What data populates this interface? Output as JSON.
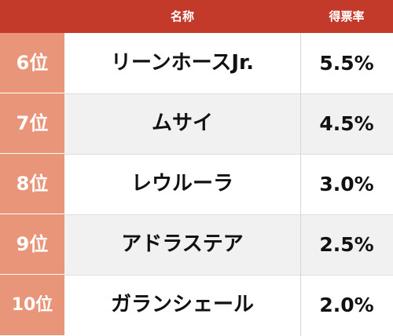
{
  "table": {
    "headers": {
      "name": "名称",
      "rate": "得票率"
    },
    "rows": [
      {
        "rank": "6位",
        "name": "リーンホースJr.",
        "rate": "5.5%"
      },
      {
        "rank": "7位",
        "name": "ムサイ",
        "rate": "4.5%"
      },
      {
        "rank": "8位",
        "name": "レウルーラ",
        "rate": "3.0%"
      },
      {
        "rank": "9位",
        "name": "アドラステア",
        "rate": "2.5%"
      },
      {
        "rank": "10位",
        "name": "ガランシェール",
        "rate": "2.0%"
      }
    ]
  },
  "colors": {
    "header_bg": "#c43a2a",
    "rank_bg": "#e8957a",
    "row_alt_bg": "#f1f1f1"
  }
}
